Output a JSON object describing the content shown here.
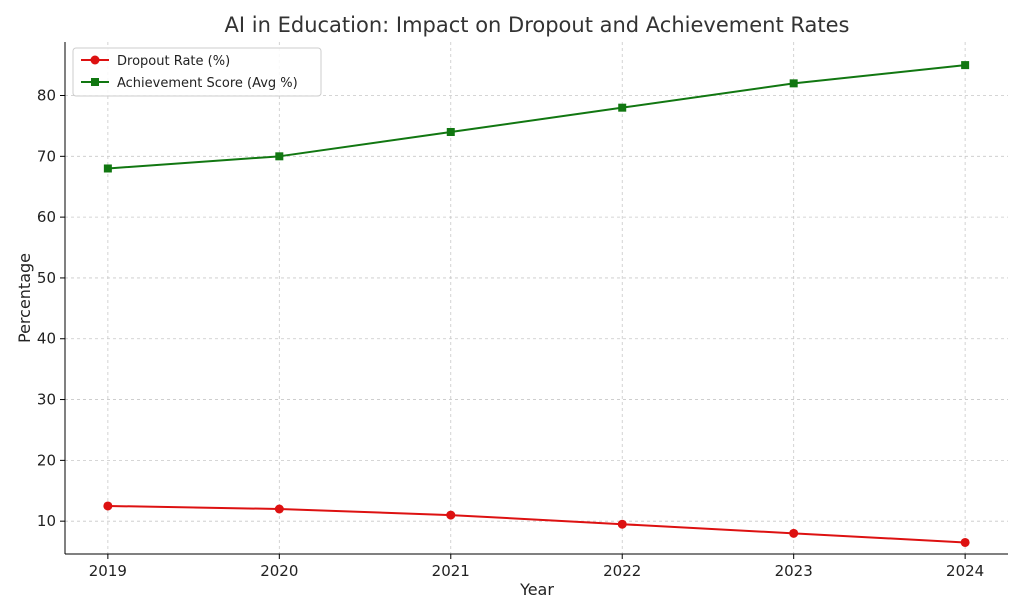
{
  "chart_data": {
    "type": "line",
    "title": "AI in Education: Impact on Dropout and Achievement Rates",
    "xlabel": "Year",
    "ylabel": "Percentage",
    "categories": [
      "2019",
      "2020",
      "2021",
      "2022",
      "2023",
      "2024"
    ],
    "x": [
      2019,
      2020,
      2021,
      2022,
      2023,
      2024
    ],
    "xlim": [
      2018.75,
      2024.25
    ],
    "ylim": [
      4.6,
      88.8
    ],
    "yticks": [
      10,
      20,
      30,
      40,
      50,
      60,
      70,
      80
    ],
    "grid": true,
    "legend_position": "top-left",
    "series": [
      {
        "name": "Dropout Rate (%)",
        "values": [
          12.5,
          12,
          11,
          9.5,
          8,
          6.5
        ],
        "color": "#dd1111",
        "marker": "circle"
      },
      {
        "name": "Achievement Score (Avg %)",
        "values": [
          68,
          70,
          74,
          78,
          82,
          85
        ],
        "color": "#117711",
        "marker": "square"
      }
    ]
  }
}
